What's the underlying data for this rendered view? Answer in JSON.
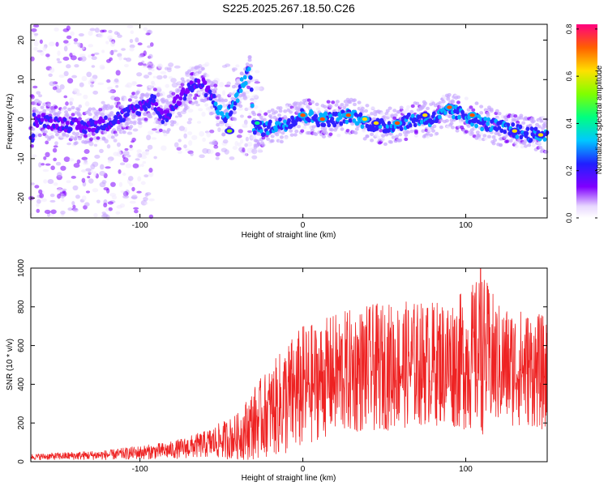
{
  "figure_title": "S225.2025.267.18.50.C26",
  "colors": {
    "snr_line": "#ee2222",
    "axis": "#000000",
    "background": "#ffffff"
  },
  "chart_data": [
    {
      "type": "heatmap",
      "title": "",
      "xlabel": "Height of straight line (km)",
      "ylabel": "Frequency (Hz)",
      "xlim": [
        -167,
        150
      ],
      "ylim": [
        -25,
        24
      ],
      "x_ticks": [
        -100,
        0,
        100
      ],
      "x_tick_labels": [
        "-100",
        "0",
        "100"
      ],
      "y_ticks": [
        -20,
        -10,
        0,
        10,
        20
      ],
      "y_tick_labels": [
        "-20",
        "-10",
        "0",
        "10",
        "20"
      ],
      "colorbar": {
        "label": "Normalized spectral amplitude",
        "range": [
          0,
          0.82
        ],
        "ticks": [
          0.0,
          0.2,
          0.4,
          0.6,
          0.8
        ],
        "tick_labels": [
          "0.0",
          "0.2",
          "0.4",
          "0.6",
          "0.8"
        ],
        "colormap": "rainbow"
      },
      "ridge": [
        {
          "x": -165,
          "y": 0
        },
        {
          "x": -150,
          "y": -1
        },
        {
          "x": -135,
          "y": -2
        },
        {
          "x": -120,
          "y": -1
        },
        {
          "x": -110,
          "y": 1
        },
        {
          "x": -100,
          "y": 3
        },
        {
          "x": -92,
          "y": 5
        },
        {
          "x": -85,
          "y": 0
        },
        {
          "x": -78,
          "y": 4
        },
        {
          "x": -70,
          "y": 8
        },
        {
          "x": -62,
          "y": 9
        },
        {
          "x": -55,
          "y": 5
        },
        {
          "x": -48,
          "y": 0
        },
        {
          "x": -42,
          "y": 4
        },
        {
          "x": -36,
          "y": 10
        },
        {
          "x": -32,
          "y": 12
        },
        {
          "x": -30,
          "y": -3
        },
        {
          "x": -20,
          "y": -2
        },
        {
          "x": -10,
          "y": -1
        },
        {
          "x": 0,
          "y": 1
        },
        {
          "x": 10,
          "y": 0
        },
        {
          "x": 20,
          "y": 0
        },
        {
          "x": 30,
          "y": 1
        },
        {
          "x": 40,
          "y": -1
        },
        {
          "x": 50,
          "y": -2
        },
        {
          "x": 60,
          "y": -1
        },
        {
          "x": 70,
          "y": 0
        },
        {
          "x": 80,
          "y": 0
        },
        {
          "x": 90,
          "y": 2
        },
        {
          "x": 100,
          "y": 1
        },
        {
          "x": 110,
          "y": -1
        },
        {
          "x": 120,
          "y": -2
        },
        {
          "x": 130,
          "y": -3
        },
        {
          "x": 140,
          "y": -4
        },
        {
          "x": 148,
          "y": -4
        }
      ],
      "hotspots": [
        {
          "x": 0,
          "y": 1,
          "amp": 0.8
        },
        {
          "x": 12,
          "y": 0,
          "amp": 0.78
        },
        {
          "x": 28,
          "y": 1,
          "amp": 0.82
        },
        {
          "x": 38,
          "y": 0,
          "amp": 0.75
        },
        {
          "x": 45,
          "y": -1,
          "amp": 0.72
        },
        {
          "x": 58,
          "y": -1,
          "amp": 0.78
        },
        {
          "x": 75,
          "y": 1,
          "amp": 0.7
        },
        {
          "x": 90,
          "y": 3,
          "amp": 0.8
        },
        {
          "x": 104,
          "y": 1,
          "amp": 0.78
        },
        {
          "x": 130,
          "y": -3,
          "amp": 0.72
        },
        {
          "x": 146,
          "y": -4,
          "amp": 0.7
        },
        {
          "x": -45,
          "y": -3,
          "amp": 0.6
        },
        {
          "x": -28,
          "y": -1,
          "amp": 0.58
        }
      ]
    },
    {
      "type": "line",
      "title": "",
      "xlabel": "Height of straight line (km)",
      "ylabel": "SNR (10 * v/v)",
      "xlim": [
        -167,
        150
      ],
      "ylim": [
        0,
        1000
      ],
      "x_ticks": [
        -100,
        0,
        100
      ],
      "x_tick_labels": [
        "-100",
        "0",
        "100"
      ],
      "y_ticks": [
        0,
        200,
        400,
        600,
        800,
        1000
      ],
      "y_tick_labels": [
        "0",
        "200",
        "400",
        "600",
        "800",
        "1000"
      ],
      "envelope": {
        "x": [
          -167,
          -120,
          -80,
          -60,
          -40,
          -30,
          -20,
          -10,
          0,
          10,
          20,
          40,
          60,
          80,
          100,
          110,
          120,
          140,
          150
        ],
        "mean": [
          25,
          35,
          60,
          90,
          130,
          200,
          260,
          320,
          380,
          420,
          450,
          480,
          500,
          510,
          520,
          560,
          500,
          480,
          450
        ],
        "spread": [
          15,
          25,
          45,
          70,
          120,
          190,
          230,
          300,
          330,
          300,
          320,
          330,
          330,
          320,
          360,
          420,
          320,
          300,
          300
        ]
      },
      "peak": {
        "x": 109,
        "y": 1000
      }
    }
  ]
}
